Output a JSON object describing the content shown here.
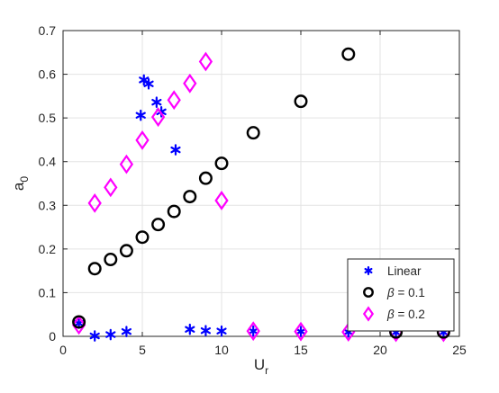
{
  "chart_data": {
    "type": "scatter",
    "xlabel": "U",
    "xlabel_sub": "r",
    "ylabel": "a",
    "ylabel_sub": "0",
    "xlim": [
      0,
      25
    ],
    "ylim": [
      0,
      0.7
    ],
    "xticks": [
      0,
      5,
      10,
      15,
      20,
      25
    ],
    "yticks": [
      0,
      0.1,
      0.2,
      0.3,
      0.4,
      0.5,
      0.6,
      0.7
    ],
    "grid": true,
    "legend_position": "bottom-right",
    "series": [
      {
        "name": "Linear",
        "marker": "asterisk",
        "color": "#0000ff",
        "points": [
          [
            1,
            0.03
          ],
          [
            2,
            0.001
          ],
          [
            3,
            0.004
          ],
          [
            4,
            0.011
          ],
          [
            4.9,
            0.506
          ],
          [
            5.1,
            0.587
          ],
          [
            5.4,
            0.578
          ],
          [
            5.9,
            0.536
          ],
          [
            6.2,
            0.514
          ],
          [
            7.1,
            0.427
          ],
          [
            8,
            0.016
          ],
          [
            9,
            0.013
          ],
          [
            10,
            0.012
          ],
          [
            12,
            0.012
          ],
          [
            15,
            0.011
          ],
          [
            18,
            0.01
          ],
          [
            21,
            0.009
          ],
          [
            24,
            0.009
          ]
        ]
      },
      {
        "name": "β = 0.1",
        "label_prefix": "β",
        "label_suffix": " = 0.1",
        "marker": "circle",
        "color": "#000000",
        "points": [
          [
            1,
            0.033
          ],
          [
            2,
            0.155
          ],
          [
            3,
            0.176
          ],
          [
            4,
            0.196
          ],
          [
            5,
            0.227
          ],
          [
            6,
            0.256
          ],
          [
            7,
            0.286
          ],
          [
            8,
            0.32
          ],
          [
            9,
            0.362
          ],
          [
            10,
            0.396
          ],
          [
            12,
            0.466
          ],
          [
            15,
            0.538
          ],
          [
            18,
            0.646
          ],
          [
            21,
            0.01
          ],
          [
            24,
            0.01
          ]
        ]
      },
      {
        "name": "β = 0.2",
        "label_prefix": "β",
        "label_suffix": " = 0.2",
        "marker": "diamond",
        "color": "#ff00ff",
        "points": [
          [
            1,
            0.026
          ],
          [
            2,
            0.305
          ],
          [
            3,
            0.341
          ],
          [
            4,
            0.394
          ],
          [
            5,
            0.449
          ],
          [
            6,
            0.502
          ],
          [
            7,
            0.541
          ],
          [
            8,
            0.579
          ],
          [
            9,
            0.629
          ],
          [
            10,
            0.311
          ],
          [
            12,
            0.012
          ],
          [
            15,
            0.011
          ],
          [
            18,
            0.01
          ],
          [
            21,
            0.009
          ],
          [
            24,
            0.009
          ]
        ]
      }
    ]
  }
}
